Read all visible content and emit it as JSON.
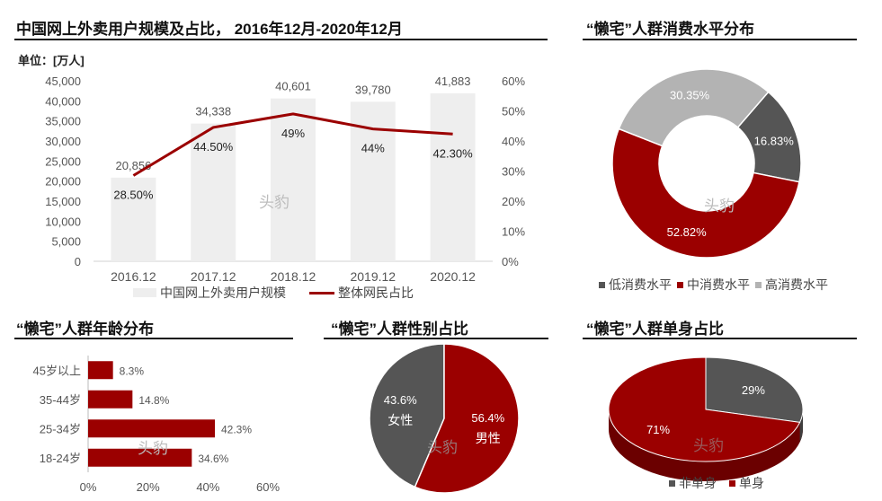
{
  "panel1": {
    "title": "中国网上外卖用户规模及占比， 2016年12月-2020年12月",
    "unit": "单位：[万人]",
    "watermark": "头豹",
    "legend_bar": "中国网上外卖用户规模",
    "legend_line": "整体网民占比"
  },
  "panel2": {
    "title": "“懒宅”人群消费水平分布",
    "watermark": "头豹",
    "legend": [
      "低消费水平",
      "中消费水平",
      "高消费水平"
    ]
  },
  "panel3": {
    "title": "“懒宅”人群年龄分布",
    "watermark": "头豹"
  },
  "panel4": {
    "title": "“懒宅”人群性别占比",
    "watermark": "头豹"
  },
  "panel5": {
    "title": "“懒宅”人群单身占比",
    "watermark": "头豹",
    "legend": [
      "非单身",
      "单身"
    ]
  },
  "colors": {
    "red": "#9b0000",
    "dark_gray": "#555555",
    "light_gray": "#b3b3b3",
    "bar_gray": "#eeeeee"
  },
  "chart_data": [
    {
      "type": "bar",
      "categories": [
        "2016.12",
        "2017.12",
        "2018.12",
        "2019.12",
        "2020.12"
      ],
      "series": [
        {
          "name": "中国网上外卖用户规模",
          "values": [
            20856,
            34338,
            40601,
            39780,
            41883
          ],
          "labels": [
            "20,856",
            "34,338",
            "40,601",
            "39,780",
            "41,883"
          ]
        },
        {
          "name": "整体网民占比",
          "type": "line",
          "axis": "right",
          "values": [
            28.5,
            44.5,
            49,
            44,
            42.3
          ],
          "labels": [
            "28.50%",
            "44.50%",
            "49%",
            "44%",
            "42.30%"
          ]
        }
      ],
      "ylim": [
        0,
        45000
      ],
      "y_ticks": [
        "0",
        "5,000",
        "10,000",
        "15,000",
        "20,000",
        "25,000",
        "30,000",
        "35,000",
        "40,000",
        "45,000"
      ],
      "y2lim": [
        0,
        60
      ],
      "y2_ticks": [
        "0%",
        "10%",
        "20%",
        "30%",
        "40%",
        "50%",
        "60%"
      ],
      "legend_position": "bottom"
    },
    {
      "type": "pie",
      "style": "donut",
      "categories": [
        "低消费水平",
        "中消费水平",
        "高消费水平"
      ],
      "values": [
        16.83,
        52.82,
        30.35
      ],
      "labels": [
        "16.83%",
        "52.82%",
        "30.35%"
      ],
      "legend_position": "bottom"
    },
    {
      "type": "bar",
      "orientation": "horizontal",
      "categories": [
        "45岁以上",
        "35-44岁",
        "25-34岁",
        "18-24岁"
      ],
      "values": [
        8.3,
        14.8,
        42.3,
        34.6
      ],
      "labels": [
        "8.3%",
        "14.8%",
        "42.3%",
        "34.6%"
      ],
      "xlim": [
        0,
        60
      ],
      "x_ticks": [
        "0%",
        "20%",
        "40%",
        "60%"
      ]
    },
    {
      "type": "pie",
      "categories": [
        "女性",
        "男性"
      ],
      "values": [
        43.6,
        56.4
      ],
      "labels": [
        "43.6%",
        "56.4%"
      ]
    },
    {
      "type": "pie",
      "style": "3d",
      "categories": [
        "非单身",
        "单身"
      ],
      "values": [
        29,
        71
      ],
      "labels": [
        "29%",
        "71%"
      ],
      "legend_position": "bottom"
    }
  ]
}
